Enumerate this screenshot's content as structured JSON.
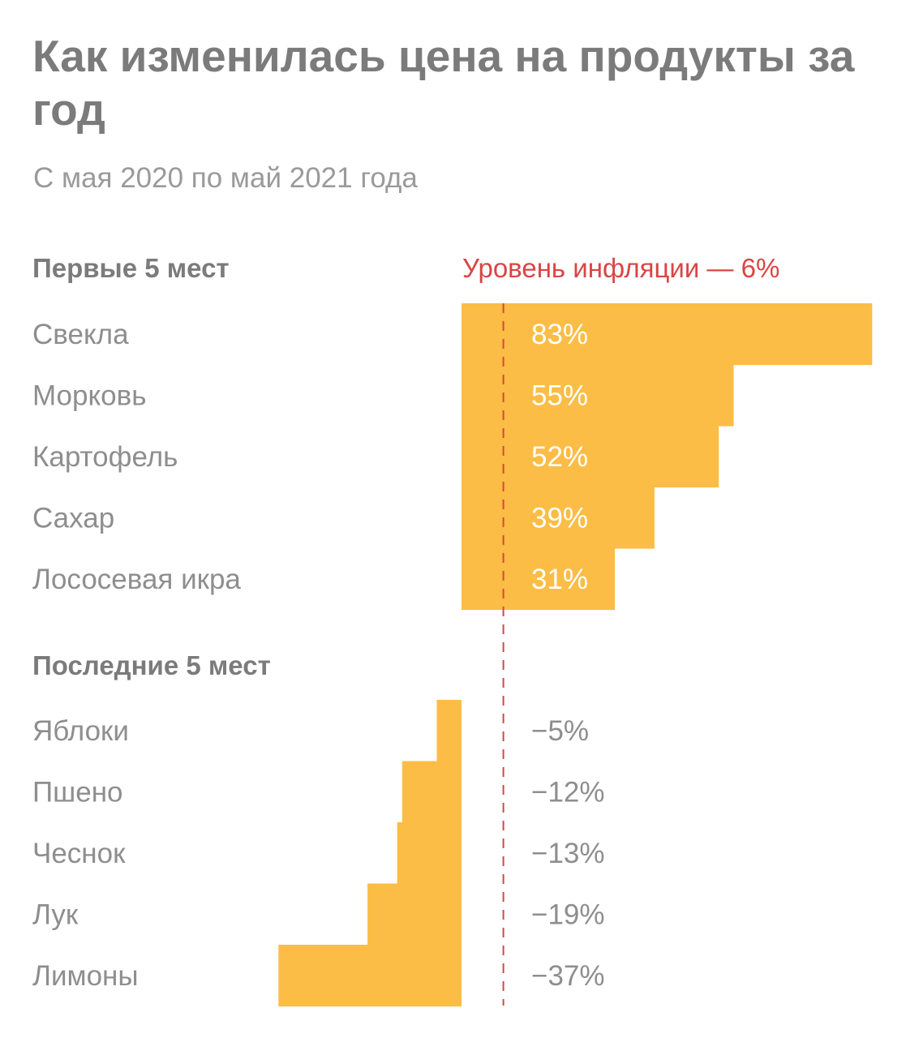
{
  "header": {
    "title": "Как изменилась цена на продукты за год",
    "subtitle": "С мая 2020 по май 2021 года"
  },
  "colors": {
    "bar": "#fbbd45",
    "inflation_line": "#d94545",
    "text": "#8e8e8e"
  },
  "chart_data": {
    "type": "bar",
    "orientation": "horizontal",
    "unit": "%",
    "inflation": {
      "label": "Уровень инфляции — 6%",
      "value": 6
    },
    "sections": [
      {
        "title": "Первые 5 мест",
        "categories": [
          "Свекла",
          "Морковь",
          "Картофель",
          "Сахар",
          "Лососевая икра"
        ],
        "values": [
          83,
          55,
          52,
          39,
          31
        ],
        "value_labels": [
          "83%",
          "55%",
          "52%",
          "39%",
          "31%"
        ]
      },
      {
        "title": "Последние 5 мест",
        "categories": [
          "Яблоки",
          "Пшено",
          "Чеснок",
          "Лук",
          "Лимоны"
        ],
        "values": [
          -5,
          -12,
          -13,
          -19,
          -37
        ],
        "value_labels": [
          "−5%",
          "−12%",
          "−13%",
          "−19%",
          "−37%"
        ]
      }
    ],
    "grid": false,
    "legend": "none"
  }
}
